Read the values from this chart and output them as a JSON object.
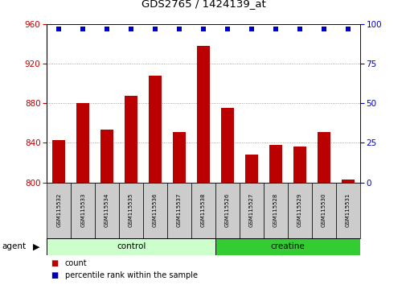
{
  "title": "GDS2765 / 1424139_at",
  "samples": [
    "GSM115532",
    "GSM115533",
    "GSM115534",
    "GSM115535",
    "GSM115536",
    "GSM115537",
    "GSM115538",
    "GSM115526",
    "GSM115527",
    "GSM115528",
    "GSM115529",
    "GSM115530",
    "GSM115531"
  ],
  "counts": [
    843,
    880,
    853,
    888,
    908,
    851,
    938,
    875,
    828,
    838,
    836,
    851,
    803
  ],
  "percentiles": [
    97,
    97,
    97,
    97,
    97,
    97,
    97,
    97,
    97,
    97,
    97,
    97,
    97
  ],
  "ylim_left": [
    800,
    960
  ],
  "ylim_right": [
    0,
    100
  ],
  "yticks_left": [
    800,
    840,
    880,
    920,
    960
  ],
  "yticks_right": [
    0,
    25,
    50,
    75,
    100
  ],
  "bar_color": "#bb0000",
  "dot_color": "#0000bb",
  "control_light": "#ccffcc",
  "creatine_green": "#33cc33",
  "grid_color": "#888888",
  "bar_width": 0.55,
  "n_control": 7,
  "n_creatine": 6,
  "dot_size": 18
}
